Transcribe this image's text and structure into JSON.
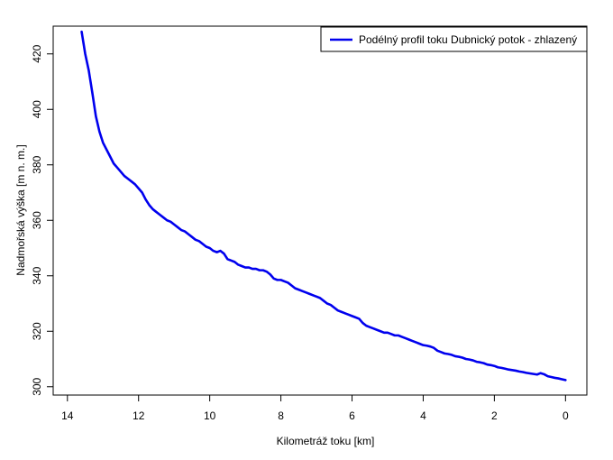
{
  "chart_data": {
    "type": "line",
    "xlabel": "Kilometráž toku [km]",
    "ylabel": "Nadmořská výška [m n. m.]",
    "xlim": [
      14.4,
      -0.6
    ],
    "ylim": [
      297,
      430
    ],
    "x_reversed": true,
    "xticks": [
      14,
      12,
      10,
      8,
      6,
      4,
      2,
      0
    ],
    "yticks": [
      300,
      320,
      340,
      360,
      380,
      400,
      420
    ],
    "legend_position": "top-right",
    "grid": false,
    "series": [
      {
        "name": "Podélný profil toku Dubnický potok - zhlazený",
        "color": "#0000ee",
        "x": [
          13.6,
          13.55,
          13.5,
          13.4,
          13.3,
          13.2,
          13.1,
          13.0,
          12.9,
          12.8,
          12.7,
          12.6,
          12.5,
          12.4,
          12.3,
          12.2,
          12.1,
          12.0,
          11.9,
          11.8,
          11.7,
          11.6,
          11.5,
          11.4,
          11.3,
          11.2,
          11.1,
          11.0,
          10.9,
          10.8,
          10.7,
          10.6,
          10.5,
          10.4,
          10.3,
          10.2,
          10.1,
          10.0,
          9.9,
          9.8,
          9.7,
          9.6,
          9.5,
          9.4,
          9.3,
          9.2,
          9.1,
          9.0,
          8.9,
          8.8,
          8.7,
          8.6,
          8.5,
          8.4,
          8.3,
          8.2,
          8.1,
          8.0,
          7.9,
          7.8,
          7.7,
          7.6,
          7.5,
          7.4,
          7.3,
          7.2,
          7.1,
          7.0,
          6.9,
          6.8,
          6.7,
          6.6,
          6.5,
          6.4,
          6.3,
          6.2,
          6.1,
          6.0,
          5.9,
          5.8,
          5.7,
          5.6,
          5.5,
          5.4,
          5.3,
          5.2,
          5.1,
          5.0,
          4.9,
          4.8,
          4.7,
          4.6,
          4.5,
          4.4,
          4.3,
          4.2,
          4.1,
          4.0,
          3.9,
          3.8,
          3.7,
          3.6,
          3.5,
          3.4,
          3.3,
          3.2,
          3.1,
          3.0,
          2.9,
          2.8,
          2.7,
          2.6,
          2.5,
          2.4,
          2.3,
          2.2,
          2.1,
          2.0,
          1.9,
          1.8,
          1.7,
          1.6,
          1.5,
          1.4,
          1.3,
          1.2,
          1.1,
          1.0,
          0.9,
          0.8,
          0.7,
          0.6,
          0.5,
          0.4,
          0.3,
          0.2,
          0.1,
          0.0
        ],
        "y": [
          428.0,
          424.0,
          420.0,
          414.0,
          406.0,
          397.5,
          392.0,
          388.0,
          385.5,
          383.0,
          380.5,
          379.0,
          377.5,
          376.0,
          375.0,
          374.0,
          373.0,
          371.5,
          370.0,
          367.5,
          365.5,
          364.0,
          363.0,
          362.0,
          361.0,
          360.0,
          359.5,
          358.5,
          357.5,
          356.5,
          356.0,
          355.0,
          354.0,
          353.0,
          352.5,
          351.5,
          350.5,
          350.0,
          349.0,
          348.5,
          349.0,
          348.0,
          346.0,
          345.5,
          345.0,
          344.0,
          343.5,
          343.0,
          343.0,
          342.5,
          342.5,
          342.0,
          342.0,
          341.5,
          340.5,
          339.0,
          338.5,
          338.5,
          338.0,
          337.5,
          336.5,
          335.5,
          335.0,
          334.5,
          334.0,
          333.5,
          333.0,
          332.5,
          332.0,
          331.0,
          330.0,
          329.5,
          328.5,
          327.5,
          327.0,
          326.5,
          326.0,
          325.5,
          325.0,
          324.5,
          323.0,
          322.0,
          321.5,
          321.0,
          320.5,
          320.0,
          319.5,
          319.5,
          319.0,
          318.5,
          318.5,
          318.0,
          317.5,
          317.0,
          316.5,
          316.0,
          315.5,
          315.0,
          314.8,
          314.5,
          314.0,
          313.0,
          312.5,
          312.0,
          311.8,
          311.5,
          311.0,
          310.8,
          310.5,
          310.0,
          309.8,
          309.5,
          309.0,
          308.8,
          308.5,
          308.0,
          307.8,
          307.5,
          307.0,
          306.8,
          306.5,
          306.2,
          306.0,
          305.8,
          305.5,
          305.3,
          305.0,
          304.8,
          304.6,
          304.4,
          304.9,
          304.5,
          303.8,
          303.5,
          303.2,
          303.0,
          302.7,
          302.4
        ]
      }
    ]
  }
}
